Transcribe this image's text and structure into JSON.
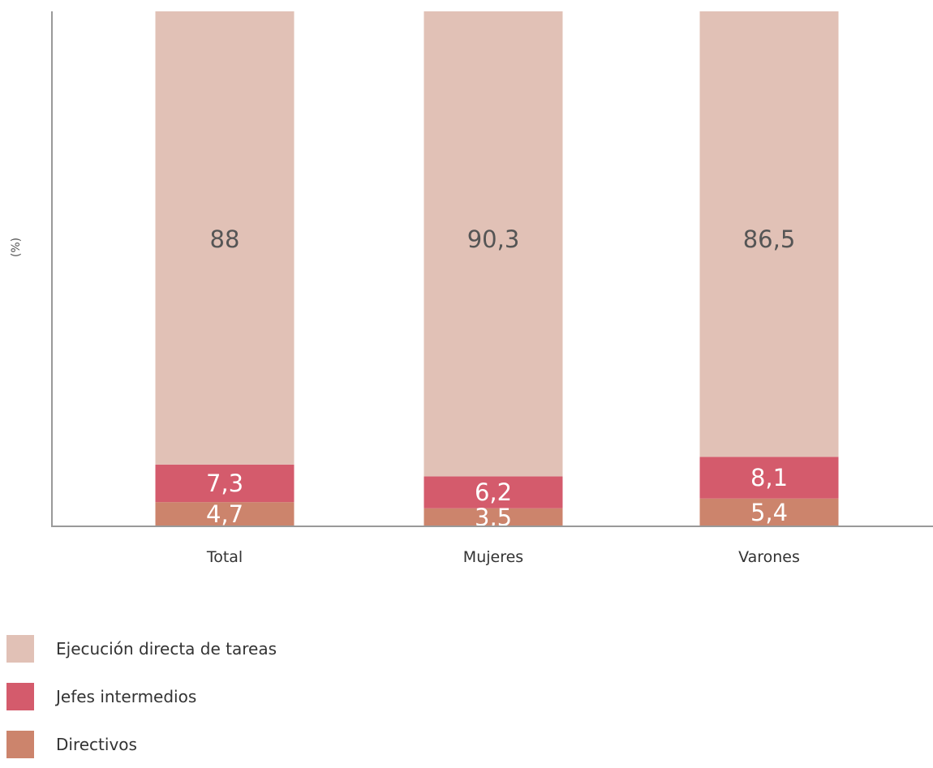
{
  "chart_data": {
    "type": "bar",
    "stacked": true,
    "ylabel": "(%)",
    "categories": [
      "Total",
      "Mujeres",
      "Varones"
    ],
    "ylim": [
      0,
      100
    ],
    "grid": false,
    "legend_placement": "bottom-left",
    "series": [
      {
        "name": "Directivos",
        "values": [
          4.7,
          3.5,
          5.4
        ],
        "color": "#cc846c",
        "labels": [
          "4,7",
          "3,5",
          "5,4"
        ]
      },
      {
        "name": "Jefes intermedios",
        "values": [
          7.3,
          6.2,
          8.1
        ],
        "color": "#d45b6c",
        "labels": [
          "7,3",
          "6,2",
          "8,1"
        ]
      },
      {
        "name": "Ejecución directa de tareas",
        "values": [
          88,
          90.3,
          86.5
        ],
        "color": "#e1c1b6",
        "labels": [
          "88",
          "90,3",
          "86,5"
        ]
      }
    ]
  },
  "legend": {
    "items": [
      {
        "label": "Ejecución directa de tareas",
        "color": "#e1c1b6"
      },
      {
        "label": "Jefes intermedios",
        "color": "#d45b6c"
      },
      {
        "label": "Directivos",
        "color": "#cc846c"
      }
    ]
  }
}
